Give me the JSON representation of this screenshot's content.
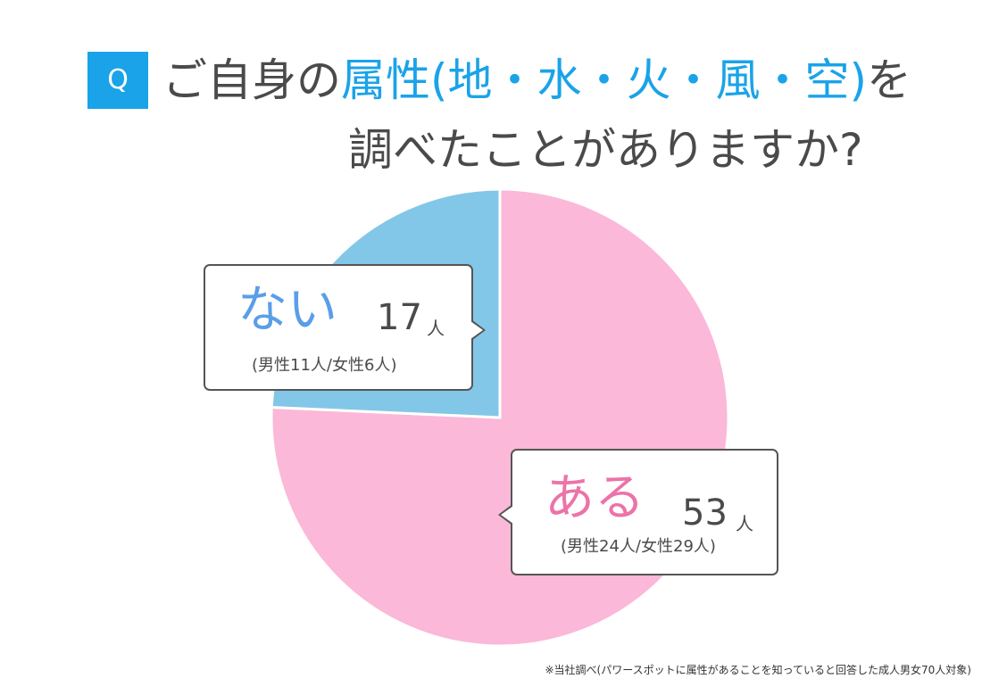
{
  "header": {
    "badge": "Q",
    "title_line1_pre": "ご自身の",
    "title_line1_accent": "属性(地・水・火・風・空)",
    "title_line1_post": "を",
    "title_line2": "調べたことがありますか?"
  },
  "chart_data": {
    "type": "pie",
    "categories": [
      "ある",
      "ない"
    ],
    "values": [
      53,
      17
    ],
    "unit": "人",
    "colors": {
      "ある": "#fbb8d8",
      "ない": "#83c7e8"
    },
    "slices": [
      {
        "label": "ある",
        "value": 53,
        "unit": "人",
        "breakdown": "(男性24人/女性29人)",
        "color": "#fbb8d8",
        "label_color": "#ec73a8"
      },
      {
        "label": "ない",
        "value": 17,
        "unit": "人",
        "breakdown": "(男性11人/女性6人)",
        "color": "#83c7e8",
        "label_color": "#5b9ee8"
      }
    ]
  },
  "footnote": "※当社調べ(パワースポットに属性があることを知っていると回答した成人男女70人対象)"
}
